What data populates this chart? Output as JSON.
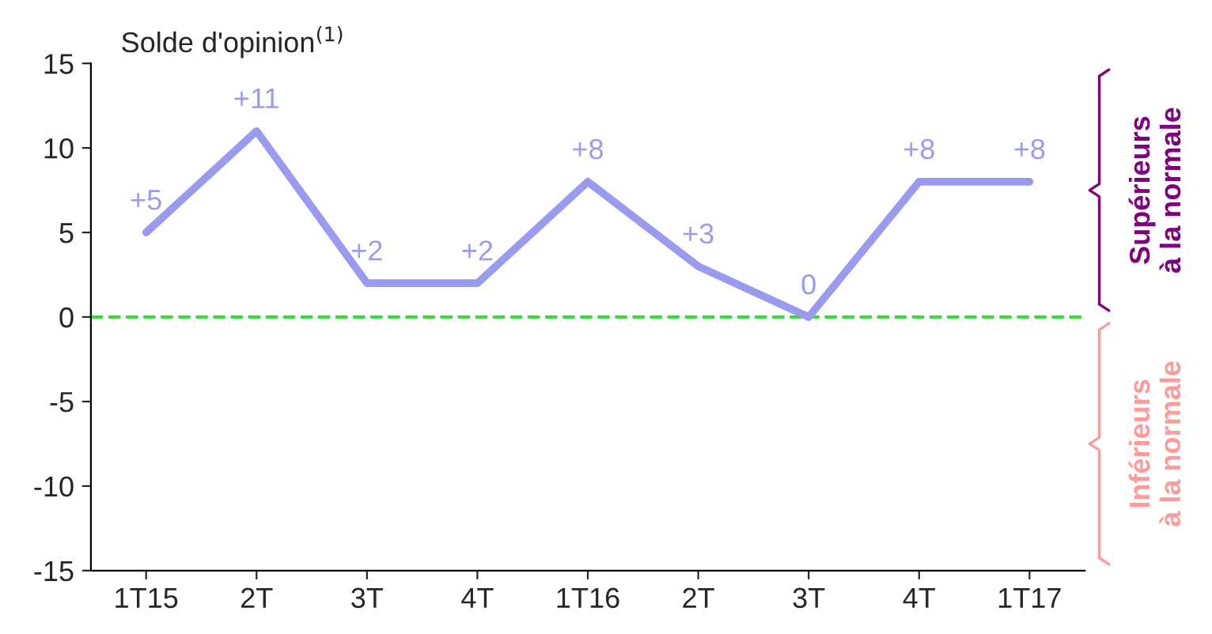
{
  "chart_data": {
    "type": "line",
    "title": "Solde d'opinion$^{(1)}$",
    "categories": [
      "1T15",
      "2T",
      "3T",
      "4T",
      "1T16",
      "2T",
      "3T",
      "4T",
      "1T17"
    ],
    "series": [
      {
        "color": "#9a9af0",
        "values": [
          5,
          11,
          2,
          2,
          8,
          3,
          0,
          8,
          8
        ],
        "value_labels": [
          "+5",
          "+11",
          "+2",
          "+2",
          "+8",
          "+3",
          "0",
          "+8",
          "+8"
        ]
      }
    ],
    "ylim": [
      -15,
      15
    ],
    "yticks": [
      -15,
      -10,
      -5,
      0,
      5,
      10,
      15
    ],
    "ref_lines": [
      {
        "axis": "y",
        "value": 0,
        "color": "#33dd33",
        "line_style": "dashed"
      }
    ],
    "annotations": [
      "Supérieurs\nà la normale",
      "Inférieurs\nà la normale"
    ],
    "grid": false,
    "legend": false,
    "marker": "none",
    "line_style": "solid"
  }
}
